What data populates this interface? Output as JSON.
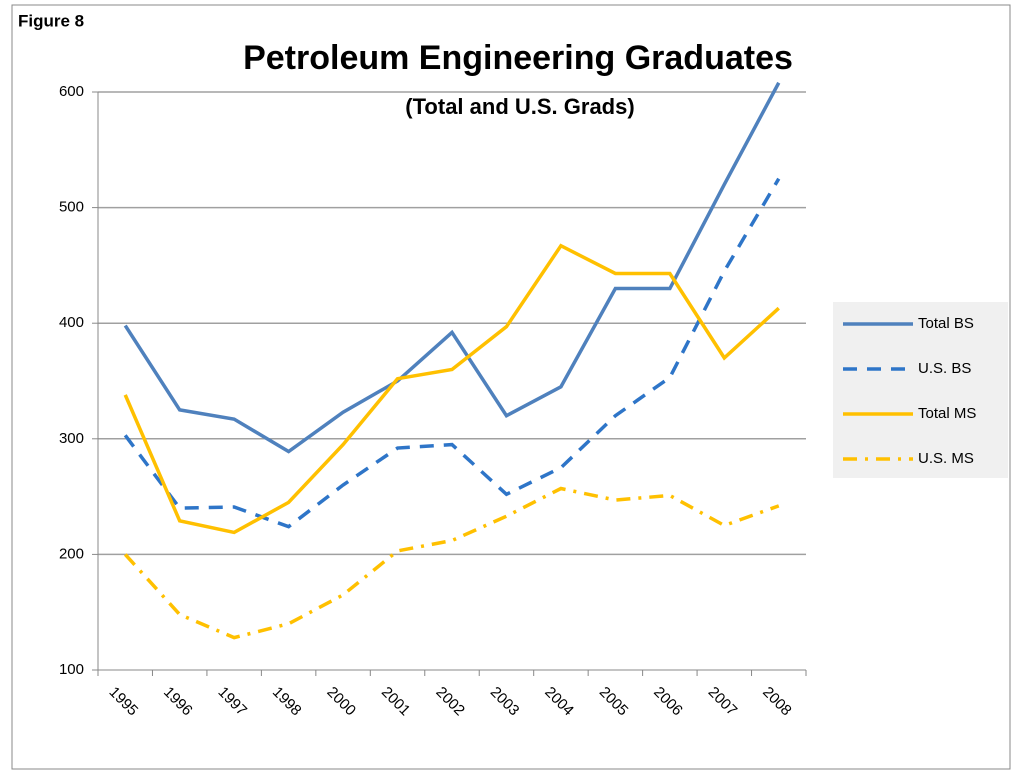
{
  "chart_data": {
    "type": "line",
    "figure_label": "Figure 8",
    "title": "Petroleum Engineering Graduates",
    "subtitle": "(Total and U.S. Grads)",
    "categories": [
      "1995",
      "1996",
      "1997",
      "1998",
      "2000",
      "2001",
      "2002",
      "2003",
      "2004",
      "2005",
      "2006",
      "2007",
      "2008"
    ],
    "series": [
      {
        "name": "Total BS",
        "color": "#4f81bd",
        "dash": "solid",
        "values": [
          398,
          325,
          317,
          289,
          323,
          350,
          392,
          320,
          345,
          430,
          430,
          520,
          608
        ]
      },
      {
        "name": "U.S. BS",
        "color": "#2e75c8",
        "dash": "dashed",
        "values": [
          303,
          240,
          241,
          224,
          260,
          292,
          295,
          252,
          275,
          320,
          353,
          445,
          525
        ]
      },
      {
        "name": "Total MS",
        "color": "#ffc000",
        "dash": "solid",
        "values": [
          338,
          229,
          219,
          245,
          295,
          352,
          360,
          397,
          467,
          443,
          443,
          370,
          413
        ]
      },
      {
        "name": "U.S. MS",
        "color": "#ffc000",
        "dash": "dashdot",
        "values": [
          200,
          148,
          128,
          140,
          165,
          203,
          212,
          233,
          257,
          247,
          251,
          225,
          242
        ]
      }
    ],
    "ylim": [
      100,
      600
    ],
    "yticks": [
      100,
      200,
      300,
      400,
      500,
      600
    ],
    "grid": true,
    "legend": "right"
  }
}
